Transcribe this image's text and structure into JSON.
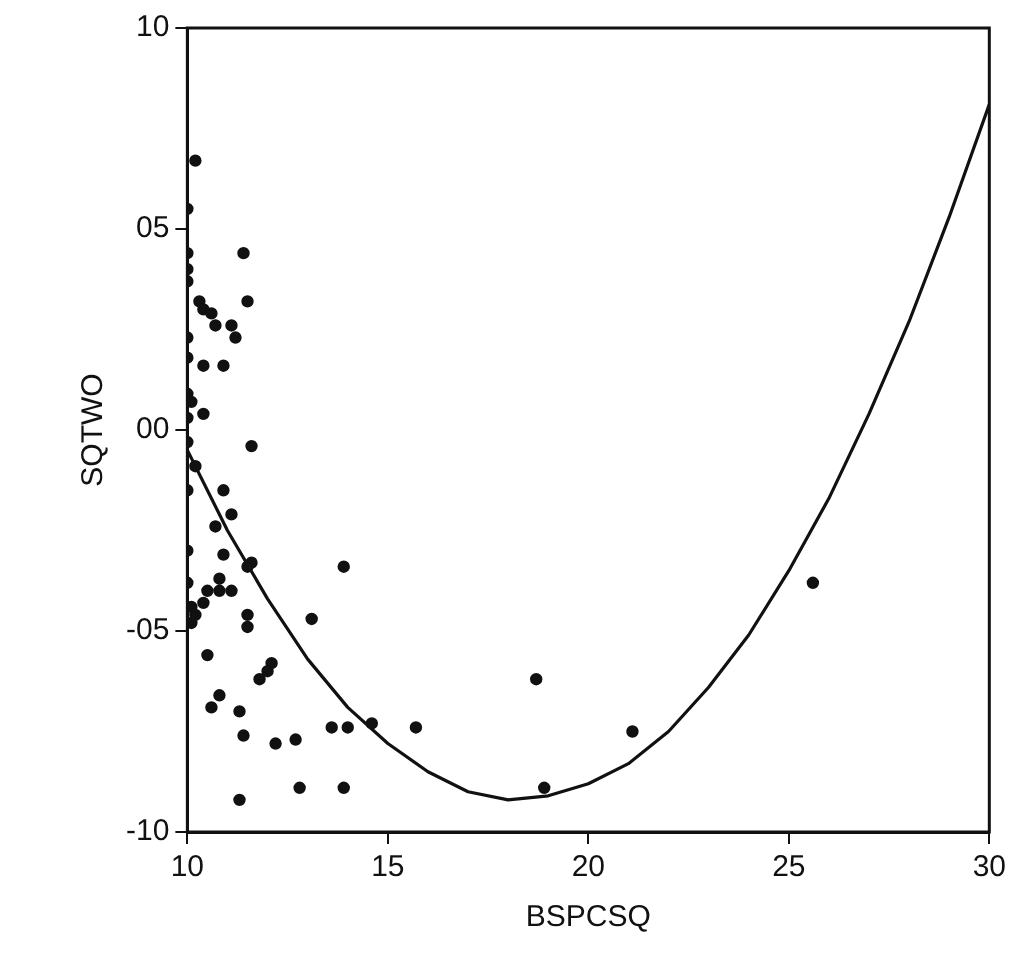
{
  "chart_data": {
    "type": "scatter",
    "xlabel": "BSPCSQ",
    "ylabel": "SQTWO",
    "xlim": [
      10,
      30
    ],
    "xticks": [
      10,
      15,
      20,
      25,
      30
    ],
    "ylim": [
      -10,
      10
    ],
    "yticks": [
      -10,
      {
        "value": -5,
        "label": "-05"
      },
      {
        "value": 0,
        "label": "00"
      },
      {
        "value": 5,
        "label": "05"
      },
      10
    ],
    "grid": false,
    "legend": false,
    "marker": "circle",
    "series": [
      {
        "color": "#111111",
        "x": [
          10.2,
          10.0,
          10.0,
          10.0,
          10.0,
          10.3,
          10.4,
          10.6,
          10.7,
          10.0,
          11.2,
          10.0,
          10.4,
          10.0,
          10.1,
          10.0,
          10.0,
          10.4,
          11.4,
          11.5,
          11.1,
          10.9,
          11.6,
          10.2,
          10.0,
          10.9,
          11.1,
          10.7,
          10.0,
          10.0,
          10.9,
          11.6,
          10.5,
          10.1,
          10.4,
          10.2,
          10.1,
          10.8,
          10.8,
          10.5,
          11.1,
          11.5,
          11.5,
          10.8,
          10.6,
          11.3,
          11.4,
          11.8,
          12.0,
          12.1,
          13.1,
          13.6,
          12.7,
          12.8,
          12.2,
          14.0,
          11.3,
          13.9,
          14.6,
          15.7,
          18.7,
          18.9,
          21.1,
          25.6,
          13.9,
          11.5
        ],
        "values": [
          6.7,
          5.5,
          4.4,
          4.0,
          3.7,
          3.2,
          3.0,
          2.9,
          2.6,
          2.3,
          2.3,
          1.8,
          1.6,
          0.9,
          0.7,
          0.3,
          -0.3,
          0.4,
          4.4,
          3.2,
          2.6,
          1.6,
          -0.4,
          -0.9,
          -1.5,
          -1.5,
          -2.1,
          -2.4,
          -3.0,
          -3.8,
          -3.1,
          -3.3,
          -4.0,
          -4.4,
          -4.3,
          -4.6,
          -4.8,
          -3.7,
          -4.0,
          -5.6,
          -4.0,
          -4.6,
          -4.9,
          -6.6,
          -6.9,
          -7.0,
          -7.6,
          -6.2,
          -6.0,
          -5.8,
          -4.7,
          -7.4,
          -7.7,
          -8.9,
          -7.8,
          -7.4,
          -9.2,
          -8.9,
          -7.3,
          -7.4,
          -6.2,
          -8.9,
          -7.5,
          -3.8,
          -3.4,
          -3.4
        ]
      },
      {
        "type": "line",
        "color": "#111111",
        "marker": "none",
        "line_style": "solid",
        "x": [
          10,
          11,
          12,
          13,
          14,
          15,
          16,
          17,
          18,
          19,
          20,
          21,
          22,
          23,
          24,
          25,
          26,
          27,
          28,
          29,
          30
        ],
        "values": [
          -0.5,
          -2.5,
          -4.2,
          -5.7,
          -6.9,
          -7.8,
          -8.5,
          -9.0,
          -9.2,
          -9.1,
          -8.8,
          -8.3,
          -7.5,
          -6.4,
          -5.1,
          -3.5,
          -1.7,
          0.4,
          2.7,
          5.3,
          8.1
        ]
      }
    ]
  }
}
